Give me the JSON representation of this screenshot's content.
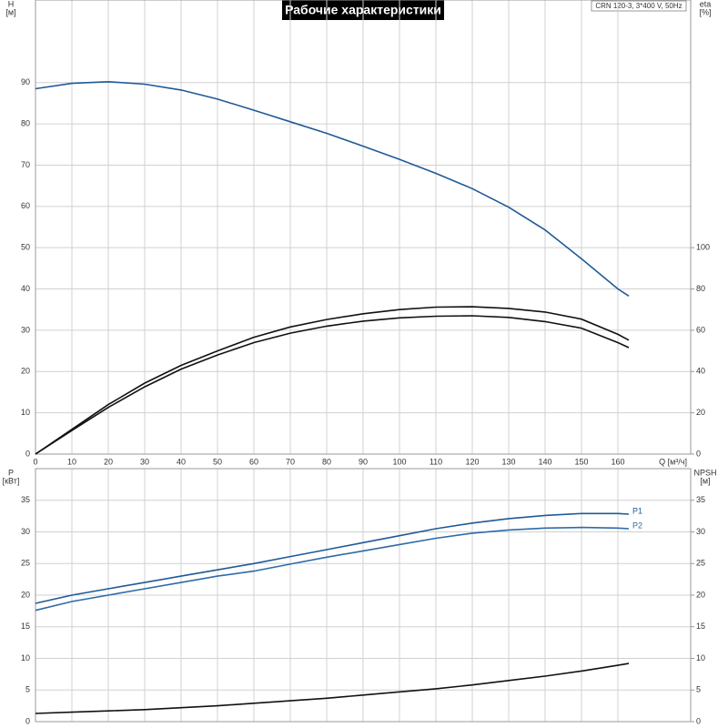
{
  "chart_data": [
    {
      "type": "line",
      "title": "Рабочие характеристики",
      "note": "CRN 120-3, 3*400 V, 50Hz",
      "ylabel": "H",
      "ylabel_unit": "[м]",
      "y2label": "eta",
      "y2label_unit": "[%]",
      "xlabel": "Q [м³/ч]",
      "x": [
        0,
        10,
        20,
        30,
        40,
        50,
        60,
        70,
        80,
        90,
        100,
        110,
        120,
        130,
        140,
        150,
        160,
        163
      ],
      "xlim": [
        0,
        180
      ],
      "xticks": [
        0,
        10,
        20,
        30,
        40,
        50,
        60,
        70,
        80,
        90,
        100,
        110,
        120,
        130,
        140,
        150,
        160
      ],
      "ylim": [
        0,
        110
      ],
      "yticks": [
        0,
        10,
        20,
        30,
        40,
        50,
        60,
        70,
        80,
        90
      ],
      "y2lim": [
        0,
        220
      ],
      "y2ticks": [
        0,
        20,
        40,
        60,
        80,
        100
      ],
      "grid": true,
      "series": [
        {
          "color": "#1f5a96",
          "values": [
            88.5,
            89.8,
            90.2,
            89.6,
            88.2,
            86,
            83.3,
            80.5,
            77.7,
            74.6,
            71.4,
            68,
            64.3,
            59.8,
            54.3,
            47.3,
            40,
            38.3
          ]
        },
        {
          "color": "#111111",
          "axis": "y2",
          "values": [
            0,
            12,
            24,
            34.4,
            43,
            50,
            56.6,
            61.6,
            65.2,
            68,
            70,
            71.2,
            71.4,
            70.6,
            68.8,
            65.4,
            58,
            55.2
          ]
        },
        {
          "color": "#111111",
          "axis": "y2",
          "values": [
            0,
            11.4,
            22.6,
            32.6,
            41.2,
            48,
            54,
            58.6,
            62,
            64.4,
            66,
            66.8,
            67,
            66.2,
            64.2,
            61,
            54,
            51.6
          ]
        }
      ]
    },
    {
      "type": "line",
      "ylabel": "P",
      "ylabel_unit": "[кВт]",
      "y2label": "NPSH",
      "y2label_unit": "[м]",
      "x": [
        0,
        10,
        20,
        30,
        40,
        50,
        60,
        70,
        80,
        90,
        100,
        110,
        120,
        130,
        140,
        150,
        160,
        163
      ],
      "xlim": [
        0,
        180
      ],
      "ylim": [
        0,
        40
      ],
      "yticks": [
        0,
        5,
        10,
        15,
        20,
        25,
        30,
        35
      ],
      "y2lim": [
        0,
        40
      ],
      "y2ticks": [
        0,
        5,
        10,
        15,
        20,
        25,
        30,
        35
      ],
      "grid": true,
      "series": [
        {
          "name": "P1",
          "color": "#1f5a96",
          "values": [
            18.7,
            20,
            21,
            22,
            23,
            24,
            25,
            26.1,
            27.2,
            28.3,
            29.4,
            30.5,
            31.4,
            32.1,
            32.6,
            32.9,
            32.9,
            32.8
          ]
        },
        {
          "name": "P2",
          "color": "#2e6aa8",
          "values": [
            17.6,
            19,
            20,
            21,
            22,
            23,
            23.8,
            24.9,
            26,
            27,
            28,
            29,
            29.8,
            30.3,
            30.6,
            30.7,
            30.6,
            30.5
          ]
        },
        {
          "color": "#111111",
          "axis": "y2",
          "values": [
            1.3,
            1.5,
            1.7,
            1.9,
            2.2,
            2.5,
            2.9,
            3.3,
            3.7,
            4.2,
            4.7,
            5.2,
            5.8,
            6.5,
            7.2,
            8,
            8.9,
            9.2
          ]
        }
      ]
    }
  ]
}
